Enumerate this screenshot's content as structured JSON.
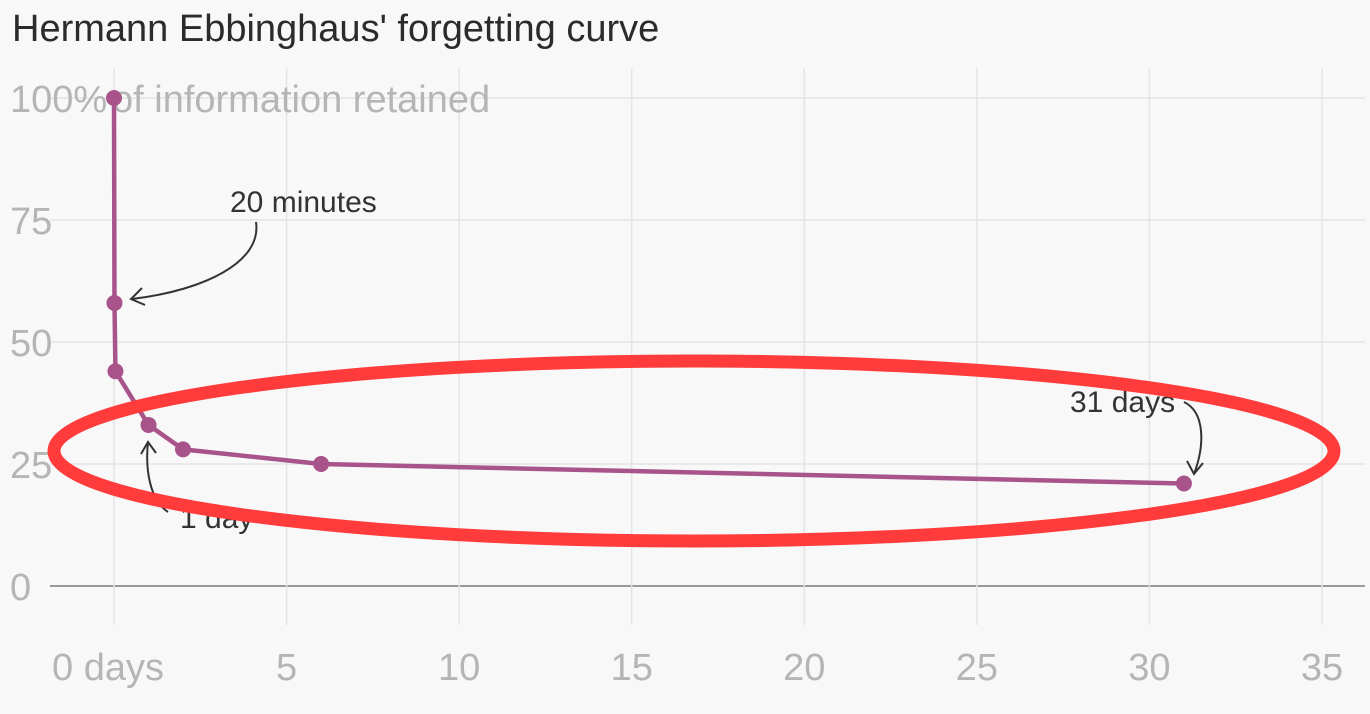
{
  "chart_data": {
    "type": "line",
    "title": "Hermann Ebbinghaus' forgetting curve",
    "ylabel": "of information retained",
    "xlabel": "",
    "y_ticks": [
      "0",
      "25",
      "50",
      "75",
      "100%"
    ],
    "y_tick_values": [
      0,
      25,
      50,
      75,
      100
    ],
    "x_ticks": [
      "0 days",
      "5",
      "10",
      "15",
      "20",
      "25",
      "30",
      "35"
    ],
    "x_tick_values": [
      0,
      5,
      10,
      15,
      20,
      25,
      30,
      35
    ],
    "xlim": [
      0,
      35
    ],
    "ylim": [
      0,
      100
    ],
    "grid": true,
    "line_color": "#a8538a",
    "highlight_color": "#ff3b3b",
    "series": [
      {
        "x": [
          0,
          0.014,
          0.042,
          1,
          2,
          6,
          31
        ],
        "y": [
          100,
          58,
          44,
          33,
          28,
          25,
          21
        ]
      }
    ],
    "annotations": [
      {
        "text": "20 minutes",
        "x": 0.014,
        "y": 58
      },
      {
        "text": "1 day",
        "x": 1,
        "y": 33
      },
      {
        "text": "31 days",
        "x": 31,
        "y": 21
      }
    ]
  }
}
